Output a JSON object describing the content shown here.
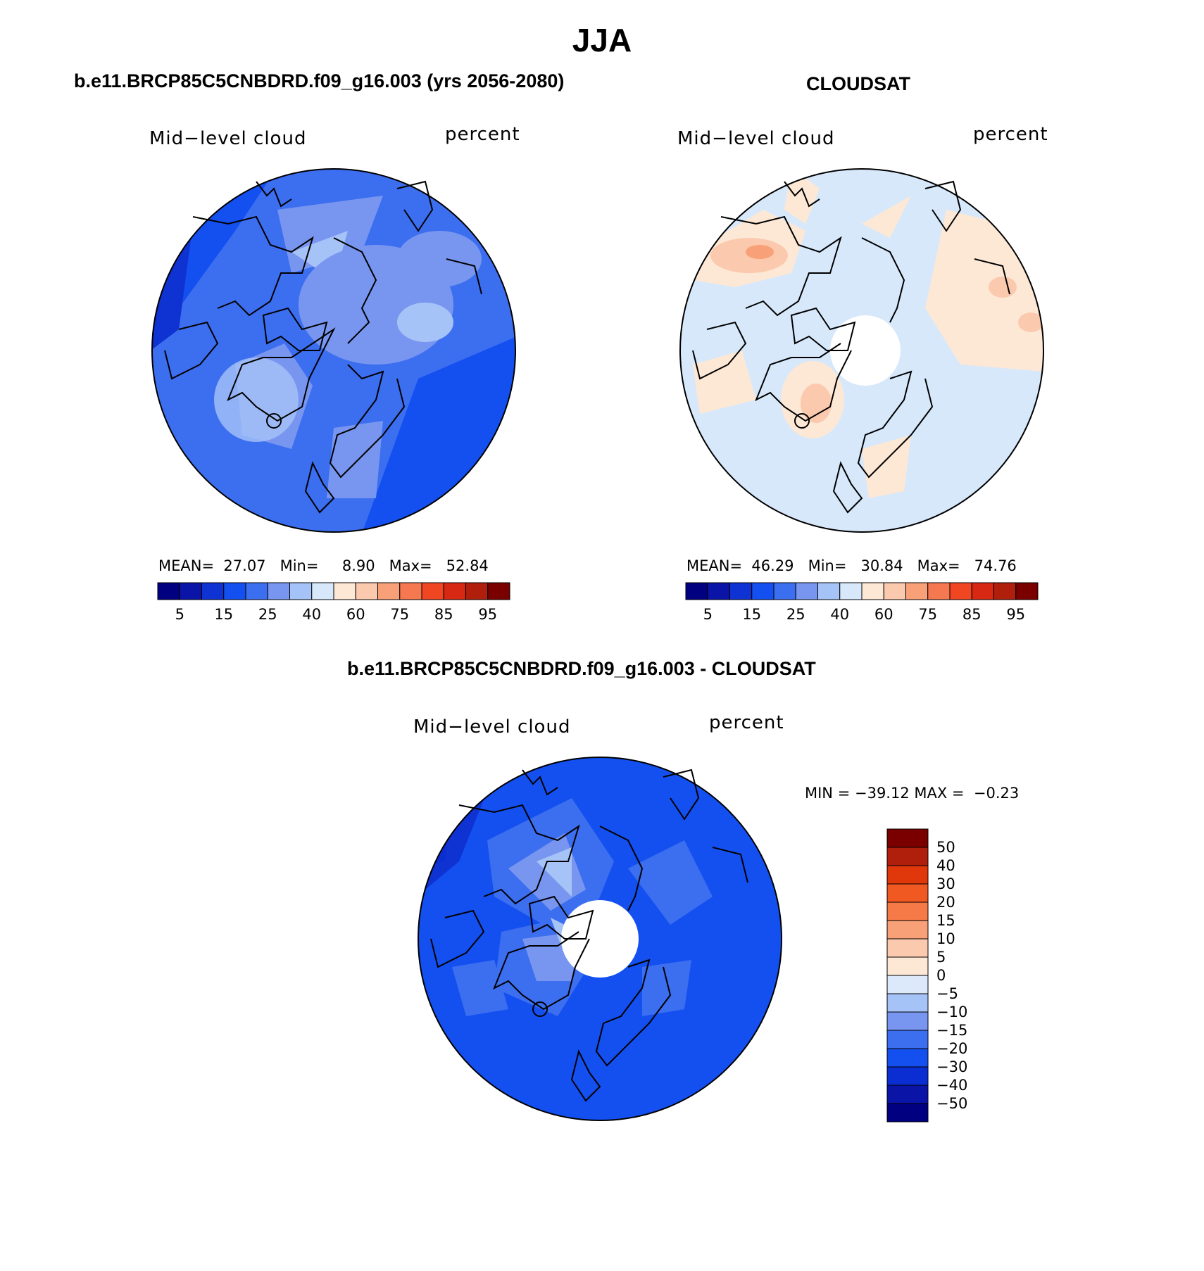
{
  "title": "JJA",
  "panels": [
    {
      "id": "model",
      "case_title": "b.e11.BRCP85C5CNBDRD.f09_g16.003 (yrs 2056-2080)",
      "variable": "Mid−level cloud",
      "units": "percent",
      "stats": {
        "mean_label": "MEAN=",
        "mean": "27.07",
        "min_label": "Min=",
        "min": "8.90",
        "max_label": "Max=",
        "max": "52.84"
      },
      "colorbar": {
        "colors": [
          "#000080",
          "#0a14a6",
          "#0f32d2",
          "#1450f0",
          "#3c6ef0",
          "#7896f0",
          "#a6c3f7",
          "#d7e8fb",
          "#fde8d6",
          "#fbc9ad",
          "#f8a078",
          "#f57850",
          "#f04622",
          "#d72814",
          "#b01e0c",
          "#7a0000"
        ],
        "labels": [
          "5",
          "15",
          "25",
          "40",
          "60",
          "75",
          "85",
          "95"
        ]
      }
    },
    {
      "id": "obs",
      "case_title": "CLOUDSAT",
      "variable": "Mid−level cloud",
      "units": "percent",
      "stats": {
        "mean_label": "MEAN=",
        "mean": "46.29",
        "min_label": "Min=",
        "min": "30.84",
        "max_label": "Max=",
        "max": "74.76"
      },
      "colorbar": {
        "colors": [
          "#000080",
          "#0a14a6",
          "#0f32d2",
          "#1450f0",
          "#3c6ef0",
          "#7896f0",
          "#a6c3f7",
          "#d7e8fb",
          "#fde8d6",
          "#fbc9ad",
          "#f8a078",
          "#f57850",
          "#f04622",
          "#d72814",
          "#b01e0c",
          "#7a0000"
        ],
        "labels": [
          "5",
          "15",
          "25",
          "40",
          "60",
          "75",
          "85",
          "95"
        ]
      }
    },
    {
      "id": "diff",
      "case_title": "b.e11.BRCP85C5CNBDRD.f09_g16.003 - CLOUDSAT",
      "variable": "Mid−level cloud",
      "units": "percent",
      "stats": {
        "min_label": "MIN =",
        "min": "−39.12",
        "max_label": "MAX =",
        "max": "−0.23"
      },
      "colorbar": {
        "colors_top_to_bottom": [
          "#7a0000",
          "#b01e0c",
          "#e0380a",
          "#f05a22",
          "#f57a48",
          "#f8a078",
          "#fbc9ad",
          "#fde8d6",
          "#dbe9fb",
          "#a6c3f7",
          "#7896f0",
          "#3c6ef0",
          "#1450f0",
          "#0a2ed2",
          "#0a14a6",
          "#000080"
        ],
        "labels_top_to_bottom": [
          "50",
          "40",
          "30",
          "20",
          "15",
          "10",
          "5",
          "0",
          "−5",
          "−10",
          "−15",
          "−20",
          "−30",
          "−40",
          "−50"
        ]
      }
    }
  ]
}
